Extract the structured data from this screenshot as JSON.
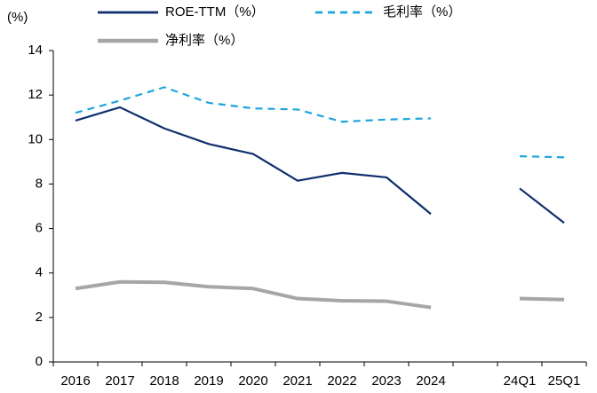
{
  "chart_data": {
    "type": "line",
    "y_label": "(%)",
    "categories": [
      "2016",
      "2017",
      "2018",
      "2019",
      "2020",
      "2021",
      "2022",
      "2023",
      "2024",
      null,
      "24Q1",
      "25Q1"
    ],
    "series": [
      {
        "name": "ROE-TTM（%）",
        "color": "#0d2f6e",
        "style": "solid",
        "values": [
          10.85,
          11.45,
          10.5,
          9.8,
          9.35,
          8.15,
          8.5,
          8.3,
          6.65,
          null,
          7.8,
          6.25
        ]
      },
      {
        "name": "毛利率（%）",
        "color": "#1aa6e0",
        "style": "dashed",
        "values": [
          11.2,
          11.75,
          12.35,
          11.65,
          11.4,
          11.35,
          10.8,
          10.9,
          10.95,
          null,
          9.25,
          9.2
        ]
      },
      {
        "name": "净利率（%）",
        "color": "#a6a6a6",
        "style": "thick",
        "values": [
          3.3,
          3.6,
          3.58,
          3.38,
          3.3,
          2.85,
          2.75,
          2.73,
          2.45,
          null,
          2.85,
          2.8
        ]
      }
    ],
    "ylim": [
      0,
      14
    ],
    "yticks": [
      0,
      2,
      4,
      6,
      8,
      10,
      12,
      14
    ],
    "grid": false
  }
}
